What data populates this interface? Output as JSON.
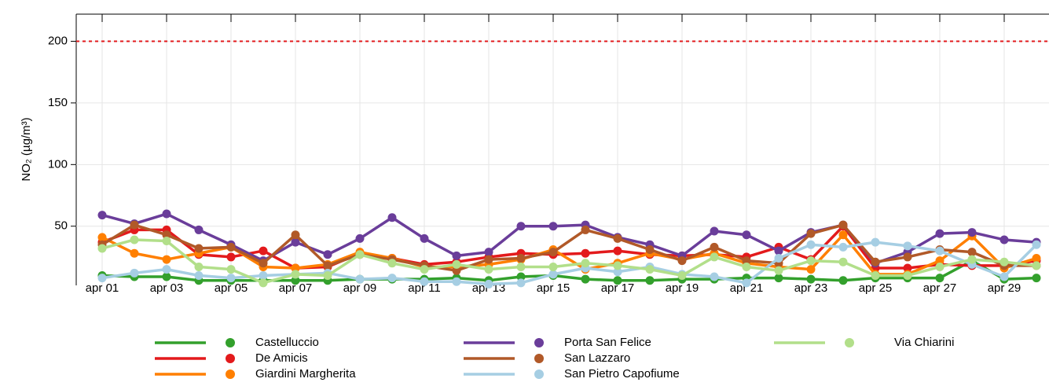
{
  "chart_data": {
    "type": "line",
    "ylabel": "NO₂ (µg/m³)",
    "categories": [
      "apr 01",
      null,
      "apr 03",
      null,
      "apr 05",
      null,
      "apr 07",
      null,
      "apr 09",
      null,
      "apr 11",
      null,
      "apr 13",
      null,
      "apr 15",
      null,
      "apr 17",
      null,
      "apr 19",
      null,
      "apr 21",
      null,
      "apr 23",
      null,
      "apr 25",
      null,
      "apr 27",
      null,
      "apr 29",
      null
    ],
    "ylim": [
      2,
      222
    ],
    "yticks": [
      50,
      100,
      150,
      200
    ],
    "grid": true,
    "hline": {
      "value": 200,
      "color": "#e31a1c"
    },
    "legend": "bottom",
    "series": [
      {
        "name": "Castelluccio",
        "color": "#33a02c",
        "values": [
          10,
          9,
          9,
          6,
          6,
          6,
          6,
          6,
          7,
          7,
          7,
          8,
          6,
          9,
          10,
          7,
          6,
          6,
          7,
          7,
          8,
          8,
          7,
          6,
          8,
          8,
          8,
          22,
          7,
          8
        ]
      },
      {
        "name": "De Amicis",
        "color": "#e31a1c",
        "values": [
          37,
          47,
          47,
          27,
          25,
          30,
          16,
          17,
          28,
          24,
          19,
          21,
          25,
          28,
          27,
          28,
          30,
          27,
          26,
          27,
          25,
          33,
          23,
          50,
          16,
          16,
          19,
          18,
          18,
          22
        ]
      },
      {
        "name": "Giardini Margherita",
        "color": "#ff7f00",
        "values": [
          41,
          28,
          23,
          28,
          33,
          17,
          16,
          19,
          29,
          24,
          17,
          17,
          19,
          23,
          31,
          15,
          20,
          28,
          23,
          28,
          20,
          17,
          15,
          43,
          11,
          11,
          22,
          42,
          16,
          24
        ]
      },
      {
        "name": "Porta San Felice",
        "color": "#6a3d9a",
        "values": [
          59,
          52,
          60,
          47,
          35,
          22,
          37,
          27,
          40,
          57,
          40,
          26,
          29,
          50,
          50,
          51,
          41,
          35,
          26,
          46,
          43,
          30,
          45,
          51,
          20,
          29,
          44,
          45,
          39,
          37
        ]
      },
      {
        "name": "San Lazzaro",
        "color": "#b15928",
        "values": [
          35,
          51,
          43,
          32,
          33,
          20,
          43,
          18,
          27,
          23,
          18,
          14,
          23,
          24,
          29,
          47,
          40,
          31,
          22,
          33,
          22,
          20,
          44,
          51,
          21,
          25,
          31,
          29,
          18,
          18
        ]
      },
      {
        "name": "San Pietro Capofiume",
        "color": "#a6cee3",
        "values": [
          8,
          12,
          15,
          10,
          8,
          10,
          11,
          12,
          7,
          8,
          5,
          5,
          3,
          4,
          11,
          16,
          13,
          17,
          11,
          9,
          4,
          24,
          35,
          33,
          37,
          34,
          30,
          19,
          9,
          35
        ]
      },
      {
        "name": "Via Chiarini",
        "color": "#b2df8a",
        "values": [
          32,
          39,
          38,
          17,
          15,
          4,
          11,
          10,
          27,
          20,
          15,
          19,
          15,
          17,
          17,
          20,
          18,
          15,
          10,
          25,
          17,
          14,
          22,
          21,
          10,
          10,
          17,
          23,
          21,
          18
        ]
      }
    ]
  }
}
